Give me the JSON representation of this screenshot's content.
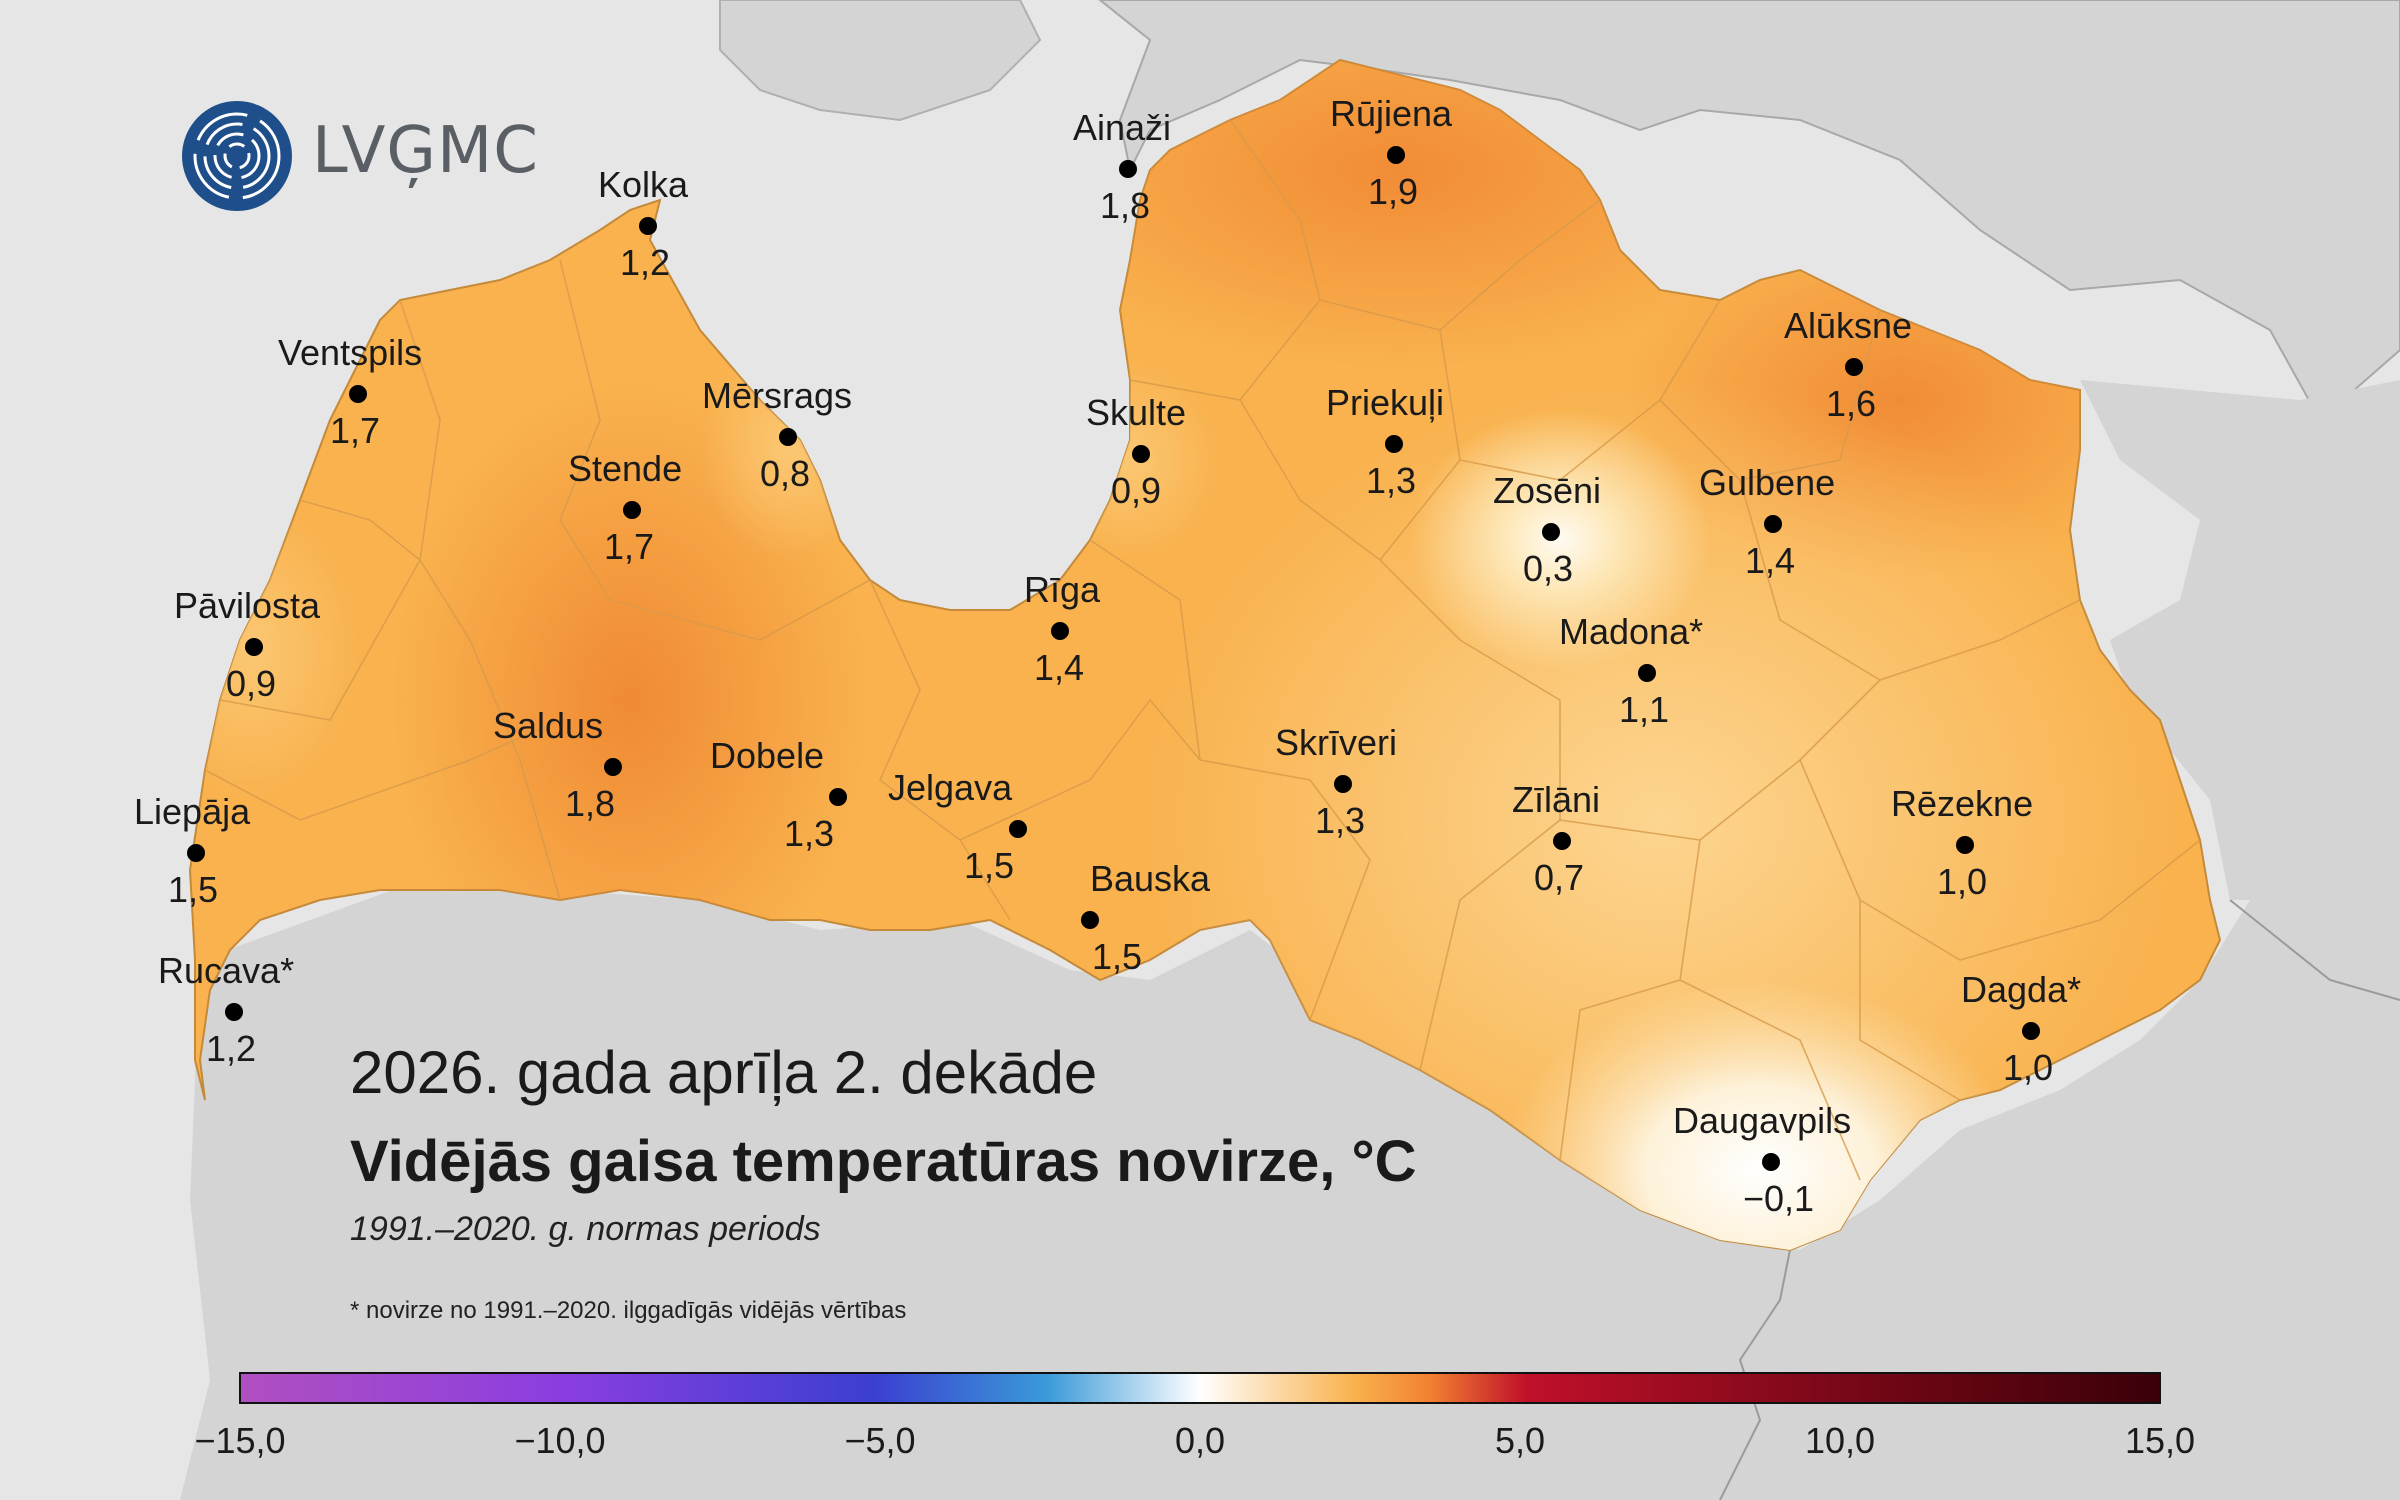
{
  "logo": {
    "text": "LVĢMC"
  },
  "title": {
    "line1": "2026. gada aprīļa 2. dekāde",
    "line2": "Vidējās gaisa temperatūras novirze, °C",
    "line3": "1991.–2020. g. normas periods"
  },
  "footnote": "* novirze no 1991.–2020. ilggadīgās vidējās vērtības",
  "colors": {
    "sea": "#e6e6e6",
    "land_outside": "#d4d4d4",
    "latvia_base": "#f9b24e",
    "border": "#9a9a9a"
  },
  "stations": [
    {
      "name": "Kolka",
      "value": "1,2"
    },
    {
      "name": "Ventspils",
      "value": "1,7"
    },
    {
      "name": "Mērsrags",
      "value": "0,8"
    },
    {
      "name": "Stende",
      "value": "1,7"
    },
    {
      "name": "Pāvilosta",
      "value": "0,9"
    },
    {
      "name": "Saldus",
      "value": "1,8"
    },
    {
      "name": "Liepāja",
      "value": "1,5"
    },
    {
      "name": "Rucava*",
      "value": "1,2"
    },
    {
      "name": "Dobele",
      "value": "1,3"
    },
    {
      "name": "Jelgava",
      "value": "1,5"
    },
    {
      "name": "Bauska",
      "value": "1,5"
    },
    {
      "name": "Rīga",
      "value": "1,4"
    },
    {
      "name": "Skulte",
      "value": "0,9"
    },
    {
      "name": "Ainaži",
      "value": "1,8"
    },
    {
      "name": "Rūjiena",
      "value": "1,9"
    },
    {
      "name": "Priekuļi",
      "value": "1,3"
    },
    {
      "name": "Alūksne",
      "value": "1,6"
    },
    {
      "name": "Zosēni",
      "value": "0,3"
    },
    {
      "name": "Gulbene",
      "value": "1,4"
    },
    {
      "name": "Madona*",
      "value": "1,1"
    },
    {
      "name": "Skrīveri",
      "value": "1,3"
    },
    {
      "name": "Zīlāni",
      "value": "0,7"
    },
    {
      "name": "Rēzekne",
      "value": "1,0"
    },
    {
      "name": "Dagda*",
      "value": "1,0"
    },
    {
      "name": "Daugavpils",
      "value": "−0,1"
    }
  ],
  "legend": {
    "min": -15,
    "max": 15,
    "ticks": [
      "−15,0",
      "−10,0",
      "−5,0",
      "0,0",
      "5,0",
      "10,0",
      "15,0"
    ],
    "tick_values": [
      -15,
      -10,
      -5,
      0,
      5,
      10,
      15
    ],
    "colors": [
      "#b04fc0",
      "#8a3ee0",
      "#3b3fd0",
      "#2f7fd0",
      "#ffffff",
      "#f9b24e",
      "#f28030",
      "#c0102a",
      "#7a0818",
      "#3a0008"
    ]
  }
}
